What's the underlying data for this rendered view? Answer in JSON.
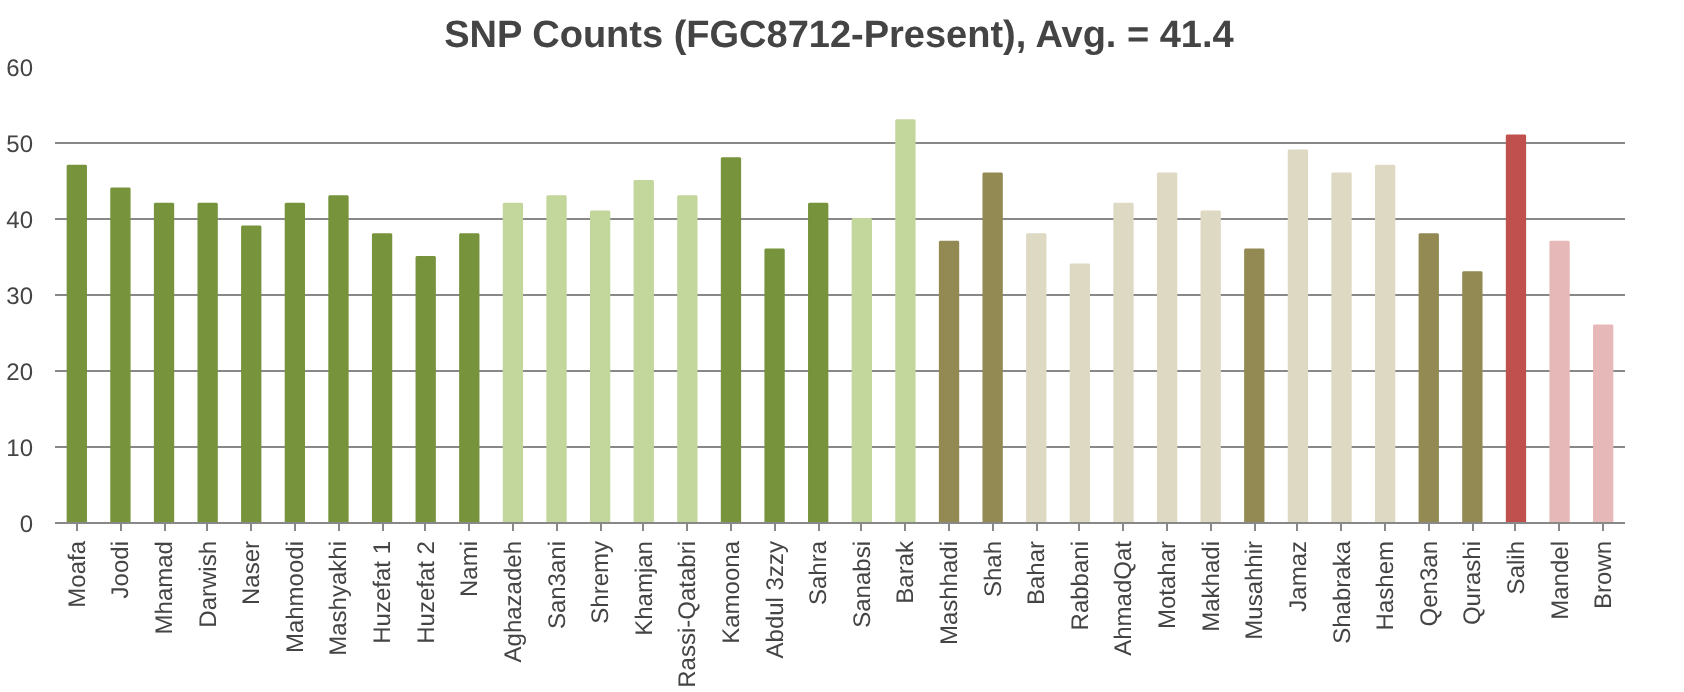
{
  "chart_data": {
    "type": "bar",
    "title": "SNP Counts (FGC8712-Present), Avg. = 41.4",
    "categories": [
      "Moafa",
      "Joodi",
      "Mhamad",
      "Darwish",
      "Naser",
      "Mahmoodi",
      "Mashyakhi",
      "Huzefat 1",
      "Huzefat 2",
      "Nami",
      "Aghazadeh",
      "San3ani",
      "Shremy",
      "Khamjan",
      "Rassi-Qatabri",
      "Kamoona",
      "Abdul 3zzy",
      "Sahra",
      "Sanabsi",
      "Barak",
      "Mashhadi",
      "Shah",
      "Bahar",
      "Rabbani",
      "AhmadQat",
      "Motahar",
      "Makhadi",
      "Musahhir",
      "Jamaz",
      "Shabraka",
      "Hashem",
      "Qen3an",
      "Qurashi",
      "Salih",
      "Mandel",
      "Brown"
    ],
    "values": [
      47,
      44,
      42,
      42,
      39,
      42,
      43,
      38,
      35,
      38,
      42,
      43,
      41,
      45,
      43,
      48,
      36,
      42,
      40,
      53,
      37,
      46,
      38,
      34,
      42,
      46,
      41,
      36,
      49,
      46,
      47,
      38,
      33,
      51,
      37,
      26
    ],
    "colors": [
      "#77933c",
      "#77933c",
      "#77933c",
      "#77933c",
      "#77933c",
      "#77933c",
      "#77933c",
      "#77933c",
      "#77933c",
      "#77933c",
      "#c3d69b",
      "#c3d69b",
      "#c3d69b",
      "#c3d69b",
      "#c3d69b",
      "#77933c",
      "#77933c",
      "#77933c",
      "#c3d69b",
      "#c3d69b",
      "#938953",
      "#938953",
      "#ddd9c3",
      "#ddd9c3",
      "#ddd9c3",
      "#ddd9c3",
      "#ddd9c3",
      "#938953",
      "#ddd9c3",
      "#ddd9c3",
      "#ddd9c3",
      "#938953",
      "#938953",
      "#c0504d",
      "#e6b9b8",
      "#e6b9b8"
    ],
    "ylim": [
      0,
      60
    ],
    "yticks": [
      0,
      10,
      20,
      30,
      40,
      50,
      60
    ],
    "grid": "y"
  }
}
